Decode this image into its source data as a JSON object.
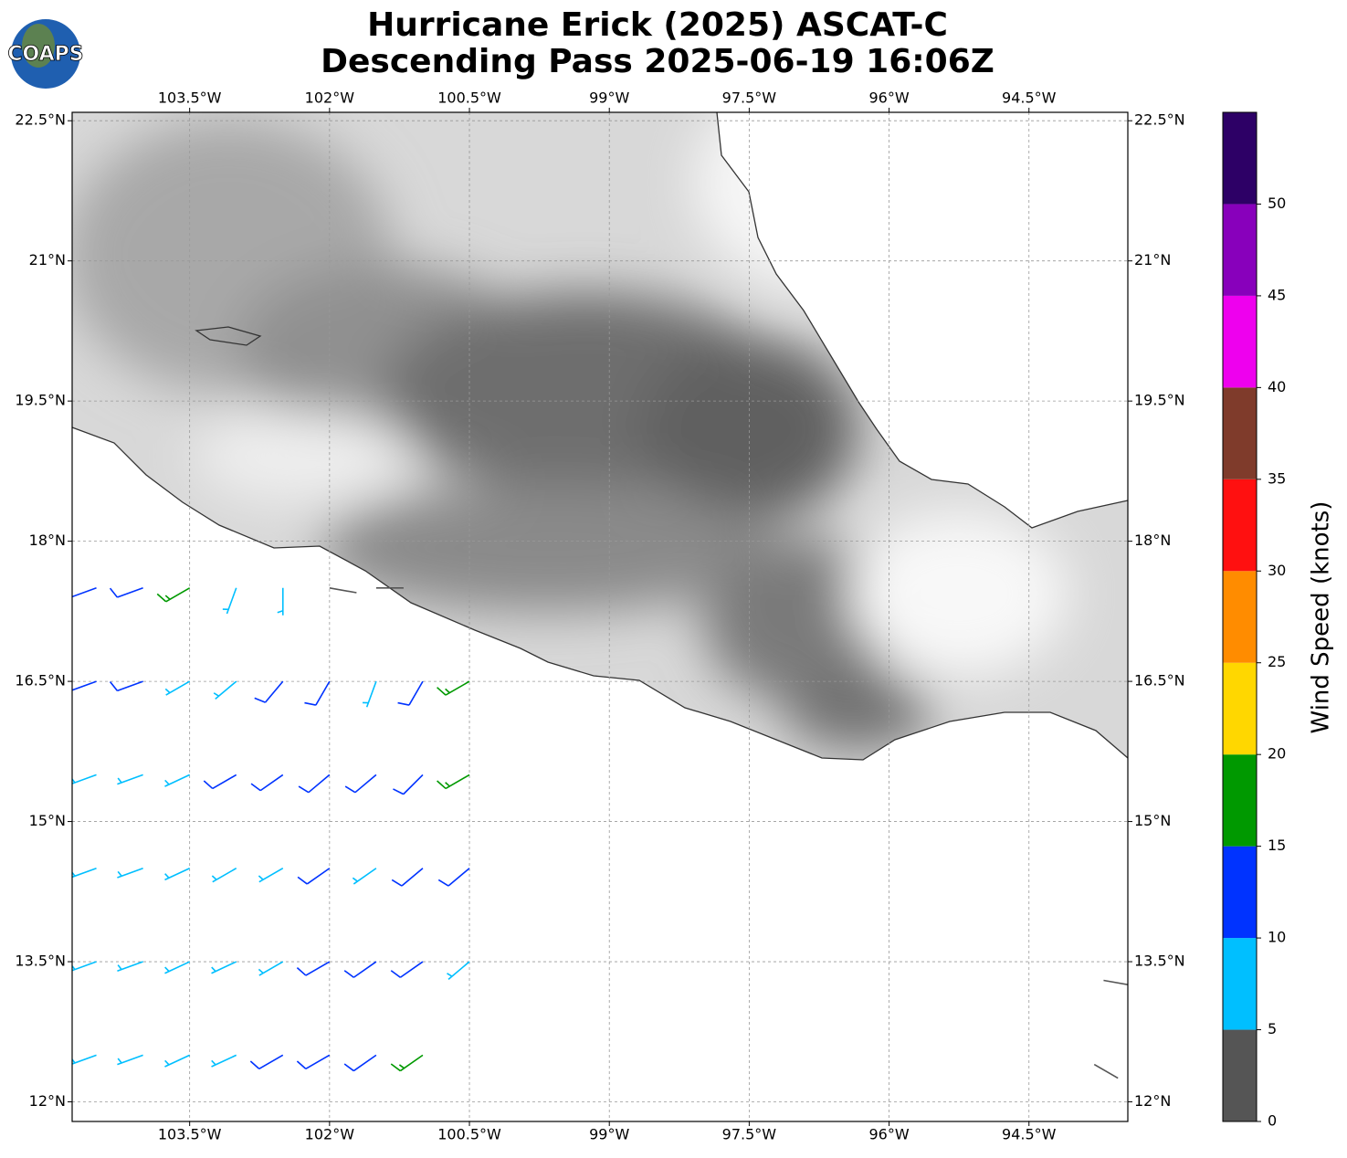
{
  "logo": "COAPS",
  "title": [
    "Hurricane Erick (2025) ASCAT-C",
    "Descending Pass 2025-06-19 16:06Z"
  ],
  "map": {
    "xlim": [
      -104.76,
      -93.44
    ],
    "ylim": [
      11.79,
      22.59
    ],
    "xticks": [
      {
        "value": -103.5,
        "label": "103.5°W"
      },
      {
        "value": -102,
        "label": "102°W"
      },
      {
        "value": -100.5,
        "label": "100.5°W"
      },
      {
        "value": -99,
        "label": "99°W"
      },
      {
        "value": -97.5,
        "label": "97.5°W"
      },
      {
        "value": -96,
        "label": "96°W"
      },
      {
        "value": -94.5,
        "label": "94.5°W"
      }
    ],
    "yticks": [
      {
        "value": 12,
        "label": "12°N"
      },
      {
        "value": 13.5,
        "label": "13.5°N"
      },
      {
        "value": 15,
        "label": "15°N"
      },
      {
        "value": 16.5,
        "label": "16.5°N"
      },
      {
        "value": 18,
        "label": "18°N"
      },
      {
        "value": 19.5,
        "label": "19.5°N"
      },
      {
        "value": 21,
        "label": "21°N"
      },
      {
        "value": 22.5,
        "label": "22.5°N"
      }
    ],
    "grid": true,
    "barbs": [
      [
        -104.5,
        17.5,
        12,
        250
      ],
      [
        -104,
        17.5,
        13,
        250
      ],
      [
        -103.5,
        17.5,
        18,
        240
      ],
      [
        -103,
        17.5,
        8,
        200
      ],
      [
        -102.5,
        17.5,
        7,
        180
      ],
      [
        -102,
        17.5,
        3,
        100
      ],
      [
        -101.5,
        17.5,
        3,
        90
      ],
      [
        -104.5,
        16.5,
        12,
        250
      ],
      [
        -104,
        16.5,
        12,
        250
      ],
      [
        -103.5,
        16.5,
        9,
        240
      ],
      [
        -103,
        16.5,
        9,
        230
      ],
      [
        -102.5,
        16.5,
        13,
        220
      ],
      [
        -102,
        16.5,
        10,
        210
      ],
      [
        -101.5,
        16.5,
        8,
        200
      ],
      [
        -101,
        16.5,
        13,
        210
      ],
      [
        -100.5,
        16.5,
        17,
        240
      ],
      [
        -104.5,
        15.5,
        8,
        250
      ],
      [
        -104,
        15.5,
        9,
        250
      ],
      [
        -103.5,
        15.5,
        8,
        245
      ],
      [
        -103,
        15.5,
        10,
        240
      ],
      [
        -102.5,
        15.5,
        11,
        235
      ],
      [
        -102,
        15.5,
        13,
        230
      ],
      [
        -101.5,
        15.5,
        12,
        230
      ],
      [
        -101,
        15.5,
        12,
        225
      ],
      [
        -100.5,
        15.5,
        17,
        240
      ],
      [
        -104.5,
        14.5,
        7,
        250
      ],
      [
        -104,
        14.5,
        8,
        250
      ],
      [
        -103.5,
        14.5,
        8,
        245
      ],
      [
        -103,
        14.5,
        9,
        240
      ],
      [
        -102.5,
        14.5,
        8,
        240
      ],
      [
        -102,
        14.5,
        12,
        235
      ],
      [
        -101.5,
        14.5,
        9,
        235
      ],
      [
        -101,
        14.5,
        12,
        230
      ],
      [
        -100.5,
        14.5,
        13,
        230
      ],
      [
        -104.5,
        13.5,
        7,
        250
      ],
      [
        -104,
        13.5,
        7,
        250
      ],
      [
        -103.5,
        13.5,
        8,
        245
      ],
      [
        -103,
        13.5,
        9,
        245
      ],
      [
        -102.5,
        13.5,
        9,
        240
      ],
      [
        -102,
        13.5,
        11,
        240
      ],
      [
        -101.5,
        13.5,
        12,
        235
      ],
      [
        -101,
        13.5,
        10,
        235
      ],
      [
        -100.5,
        13.5,
        9,
        230
      ],
      [
        -104.5,
        12.5,
        8,
        250
      ],
      [
        -104,
        12.5,
        9,
        250
      ],
      [
        -103.5,
        12.5,
        8,
        245
      ],
      [
        -103,
        12.5,
        9,
        245
      ],
      [
        -102.5,
        12.5,
        12,
        240
      ],
      [
        -102,
        12.5,
        12,
        240
      ],
      [
        -101.5,
        12.5,
        13,
        235
      ],
      [
        -101,
        12.5,
        17,
        235
      ],
      [
        -93.8,
        12.4,
        3,
        120
      ],
      [
        -93.7,
        13.3,
        4,
        100
      ]
    ]
  },
  "colorbar": {
    "label": "Wind Speed (knots)",
    "lim": [
      0,
      55
    ],
    "ticks": [
      0,
      5,
      10,
      15,
      20,
      25,
      30,
      35,
      40,
      45,
      50
    ],
    "bounds": [
      0,
      5,
      10,
      15,
      20,
      25,
      30,
      35,
      40,
      45,
      50,
      55
    ],
    "colors": [
      "#555555",
      "#00bfff",
      "#0033ff",
      "#009900",
      "#ffd700",
      "#ff8c00",
      "#ff1010",
      "#7f3b2b",
      "#ee00ee",
      "#8800bb",
      "#2d0066"
    ]
  }
}
